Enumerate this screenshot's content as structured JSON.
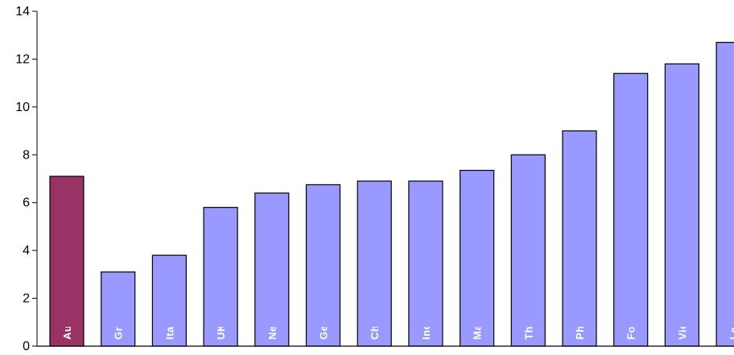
{
  "chart_data": {
    "type": "bar",
    "title": "",
    "xlabel": "",
    "ylabel": "",
    "ylim": [
      0,
      14
    ],
    "yticks": [
      0,
      2,
      4,
      6,
      8,
      10,
      12,
      14
    ],
    "grid": false,
    "legend": "none",
    "categories": [
      "Australia",
      "Greece*",
      "Italy*",
      "UK & Ireland",
      "New Zealand",
      "Germany*",
      "China",
      "India",
      "Malaysia*",
      "The Americas",
      "Philippines",
      "Former Yugoslavia",
      "Viet Nam",
      "Lebanon"
    ],
    "values": [
      7.1,
      3.1,
      3.8,
      5.8,
      6.4,
      6.75,
      6.9,
      6.9,
      7.35,
      8.0,
      9.0,
      11.4,
      11.8,
      12.7
    ],
    "colors": {
      "highlight": "#993366",
      "default": "#9999ff",
      "outline": "#000000"
    },
    "highlight_index": 0
  }
}
